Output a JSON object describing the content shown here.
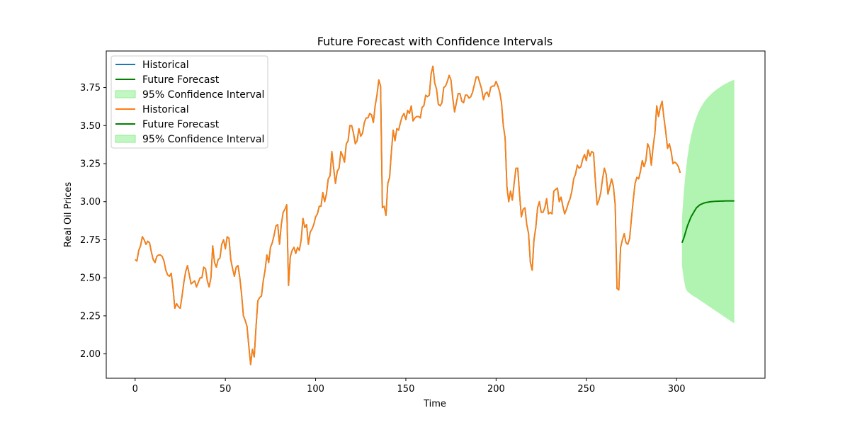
{
  "chart_data": {
    "type": "line",
    "title": "Future Forecast with Confidence Intervals",
    "xlabel": "Time",
    "ylabel": "Real Oil Prices",
    "xlim": [
      -16,
      349
    ],
    "ylim": [
      1.84,
      3.99
    ],
    "x_ticks": [
      0,
      50,
      100,
      150,
      200,
      250,
      300
    ],
    "y_ticks": [
      2.0,
      2.25,
      2.5,
      2.75,
      3.0,
      3.25,
      3.5,
      3.75
    ],
    "y_tick_labels": [
      "2.00",
      "2.25",
      "2.50",
      "2.75",
      "3.00",
      "3.25",
      "3.50",
      "3.75"
    ],
    "grid": false,
    "legend_position": "top-left",
    "colors": {
      "historical_blue": "#1f77b4",
      "historical_orange": "#ff7f0e",
      "forecast": "#008000",
      "ci_fill": "#90ee90"
    },
    "legend": [
      {
        "label": "Historical",
        "kind": "line",
        "color": "#1f77b4"
      },
      {
        "label": "Future Forecast",
        "kind": "line",
        "color": "#008000"
      },
      {
        "label": "95% Confidence Interval",
        "kind": "patch",
        "color": "#90ee90"
      },
      {
        "label": "Historical",
        "kind": "line",
        "color": "#ff7f0e"
      },
      {
        "label": "Future Forecast",
        "kind": "line",
        "color": "#008000"
      },
      {
        "label": "95% Confidence Interval",
        "kind": "patch",
        "color": "#90ee90"
      }
    ],
    "historical": {
      "name": "Historical",
      "x_start": 0,
      "values": [
        2.62,
        2.61,
        2.68,
        2.71,
        2.77,
        2.75,
        2.72,
        2.74,
        2.73,
        2.67,
        2.62,
        2.6,
        2.64,
        2.65,
        2.65,
        2.64,
        2.61,
        2.55,
        2.52,
        2.51,
        2.53,
        2.43,
        2.3,
        2.33,
        2.31,
        2.3,
        2.38,
        2.47,
        2.54,
        2.58,
        2.52,
        2.46,
        2.47,
        2.48,
        2.44,
        2.47,
        2.5,
        2.5,
        2.57,
        2.56,
        2.48,
        2.44,
        2.5,
        2.71,
        2.6,
        2.57,
        2.62,
        2.63,
        2.72,
        2.75,
        2.69,
        2.77,
        2.76,
        2.62,
        2.56,
        2.51,
        2.57,
        2.58,
        2.5,
        2.39,
        2.25,
        2.22,
        2.18,
        2.05,
        1.93,
        2.03,
        1.98,
        2.18,
        2.35,
        2.37,
        2.38,
        2.48,
        2.55,
        2.65,
        2.6,
        2.7,
        2.73,
        2.78,
        2.84,
        2.85,
        2.72,
        2.85,
        2.93,
        2.95,
        2.98,
        2.45,
        2.64,
        2.68,
        2.7,
        2.66,
        2.7,
        2.68,
        2.75,
        2.89,
        2.83,
        2.85,
        2.72,
        2.8,
        2.82,
        2.85,
        2.9,
        2.92,
        2.97,
        2.97,
        3.06,
        3.0,
        3.05,
        3.15,
        3.17,
        3.33,
        3.22,
        3.12,
        3.2,
        3.22,
        3.33,
        3.3,
        3.26,
        3.38,
        3.4,
        3.5,
        3.5,
        3.45,
        3.38,
        3.4,
        3.48,
        3.43,
        3.45,
        3.52,
        3.55,
        3.55,
        3.58,
        3.57,
        3.52,
        3.63,
        3.7,
        3.8,
        3.76,
        2.96,
        2.97,
        2.91,
        3.12,
        3.16,
        3.33,
        3.47,
        3.4,
        3.48,
        3.47,
        3.52,
        3.56,
        3.58,
        3.54,
        3.6,
        3.58,
        3.63,
        3.53,
        3.55,
        3.56,
        3.56,
        3.55,
        3.62,
        3.63,
        3.7,
        3.69,
        3.7,
        3.84,
        3.89,
        3.78,
        3.74,
        3.64,
        3.63,
        3.65,
        3.75,
        3.76,
        3.79,
        3.83,
        3.8,
        3.68,
        3.59,
        3.65,
        3.71,
        3.71,
        3.66,
        3.65,
        3.7,
        3.7,
        3.68,
        3.69,
        3.72,
        3.77,
        3.82,
        3.82,
        3.78,
        3.74,
        3.67,
        3.71,
        3.72,
        3.69,
        3.75,
        3.76,
        3.76,
        3.79,
        3.76,
        3.72,
        3.65,
        3.5,
        3.42,
        3.1,
        3.0,
        3.07,
        3.01,
        3.12,
        3.22,
        3.22,
        3.05,
        2.9,
        2.95,
        2.96,
        2.85,
        2.79,
        2.6,
        2.55,
        2.75,
        2.83,
        2.96,
        3.0,
        2.93,
        2.93,
        2.96,
        3.02,
        2.92,
        2.93,
        2.92,
        3.07,
        3.08,
        3.09,
        3.0,
        3.03,
        2.97,
        2.92,
        2.95,
        2.99,
        3.02,
        3.07,
        3.15,
        3.18,
        3.24,
        3.22,
        3.23,
        3.28,
        3.31,
        3.27,
        3.34,
        3.3,
        3.33,
        3.32,
        3.14,
        2.98,
        3.01,
        3.06,
        3.15,
        3.22,
        3.18,
        3.05,
        3.1,
        3.15,
        3.1,
        2.98,
        2.43,
        2.42,
        2.7,
        2.75,
        2.79,
        2.73,
        2.72,
        2.76,
        2.89,
        3.01,
        3.12,
        3.16,
        3.15,
        3.2,
        3.27,
        3.23,
        3.27,
        3.38,
        3.35,
        3.24,
        3.36,
        3.45,
        3.63,
        3.56,
        3.62,
        3.66,
        3.55,
        3.46,
        3.35,
        3.38,
        3.33,
        3.25,
        3.26,
        3.25,
        3.23,
        3.19
      ]
    },
    "forecast": {
      "name": "Future Forecast",
      "x_start": 303,
      "values": [
        2.73,
        2.76,
        2.8,
        2.84,
        2.87,
        2.9,
        2.92,
        2.94,
        2.96,
        2.97,
        2.98,
        2.985,
        2.99,
        2.994,
        2.996,
        2.998,
        3.0,
        3.001,
        3.002,
        3.003,
        3.003,
        3.004,
        3.004,
        3.004,
        3.005,
        3.005,
        3.005,
        3.005,
        3.005,
        3.005
      ]
    },
    "confidence_interval": {
      "name": "95% Confidence Interval",
      "x_start": 303,
      "lower": [
        2.58,
        2.49,
        2.43,
        2.41,
        2.4,
        2.39,
        2.383,
        2.375,
        2.368,
        2.36,
        2.352,
        2.344,
        2.336,
        2.328,
        2.32,
        2.312,
        2.304,
        2.296,
        2.288,
        2.28,
        2.272,
        2.264,
        2.256,
        2.248,
        2.24,
        2.232,
        2.224,
        2.216,
        2.208,
        2.2
      ],
      "upper": [
        2.89,
        3.06,
        3.19,
        3.29,
        3.37,
        3.43,
        3.48,
        3.52,
        3.555,
        3.585,
        3.61,
        3.63,
        3.65,
        3.666,
        3.68,
        3.693,
        3.705,
        3.716,
        3.726,
        3.735,
        3.744,
        3.752,
        3.76,
        3.767,
        3.774,
        3.78,
        3.786,
        3.792,
        3.797,
        3.8
      ]
    }
  }
}
